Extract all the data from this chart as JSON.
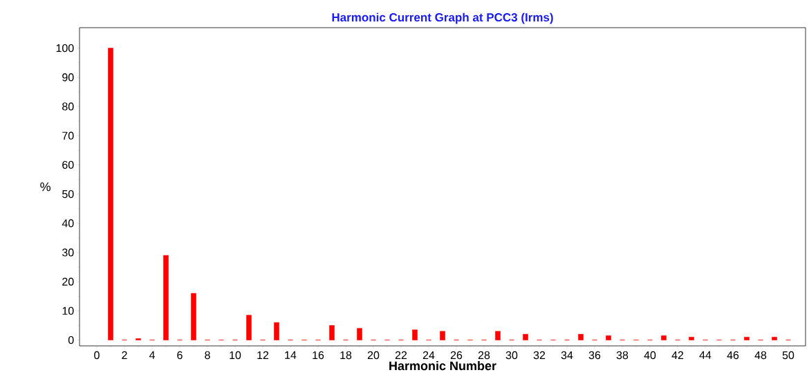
{
  "chart_data": {
    "type": "bar",
    "title": "Harmonic Current Graph at PCC3 (Irms)",
    "xlabel": "Harmonic Number",
    "ylabel": "%",
    "x": [
      1,
      2,
      3,
      4,
      5,
      6,
      7,
      8,
      9,
      10,
      11,
      12,
      13,
      14,
      15,
      16,
      17,
      18,
      19,
      20,
      21,
      22,
      23,
      24,
      25,
      26,
      27,
      28,
      29,
      30,
      31,
      32,
      33,
      34,
      35,
      36,
      37,
      38,
      39,
      40,
      41,
      42,
      43,
      44,
      45,
      46,
      47,
      48,
      49,
      50
    ],
    "values": [
      100,
      0,
      0.5,
      0,
      29,
      0,
      16,
      0,
      0,
      0,
      8.5,
      0,
      6,
      0,
      0,
      0,
      5,
      0,
      4,
      0,
      0,
      0,
      3.5,
      0,
      3,
      0,
      0,
      0,
      3,
      0,
      2,
      0,
      0,
      0,
      2,
      0,
      1.5,
      0,
      0,
      0,
      1.5,
      0,
      1,
      0,
      0,
      0,
      1,
      0,
      1,
      0
    ],
    "color": "#ff0000",
    "xlim": [
      -1.25,
      51.25
    ],
    "xticks": [
      0,
      2,
      4,
      6,
      8,
      10,
      12,
      14,
      16,
      18,
      20,
      22,
      24,
      26,
      28,
      30,
      32,
      34,
      36,
      38,
      40,
      42,
      44,
      46,
      48,
      50
    ],
    "ylim": [
      -2,
      107
    ],
    "yticks": [
      0,
      10,
      20,
      30,
      40,
      50,
      60,
      70,
      80,
      90,
      100
    ]
  }
}
